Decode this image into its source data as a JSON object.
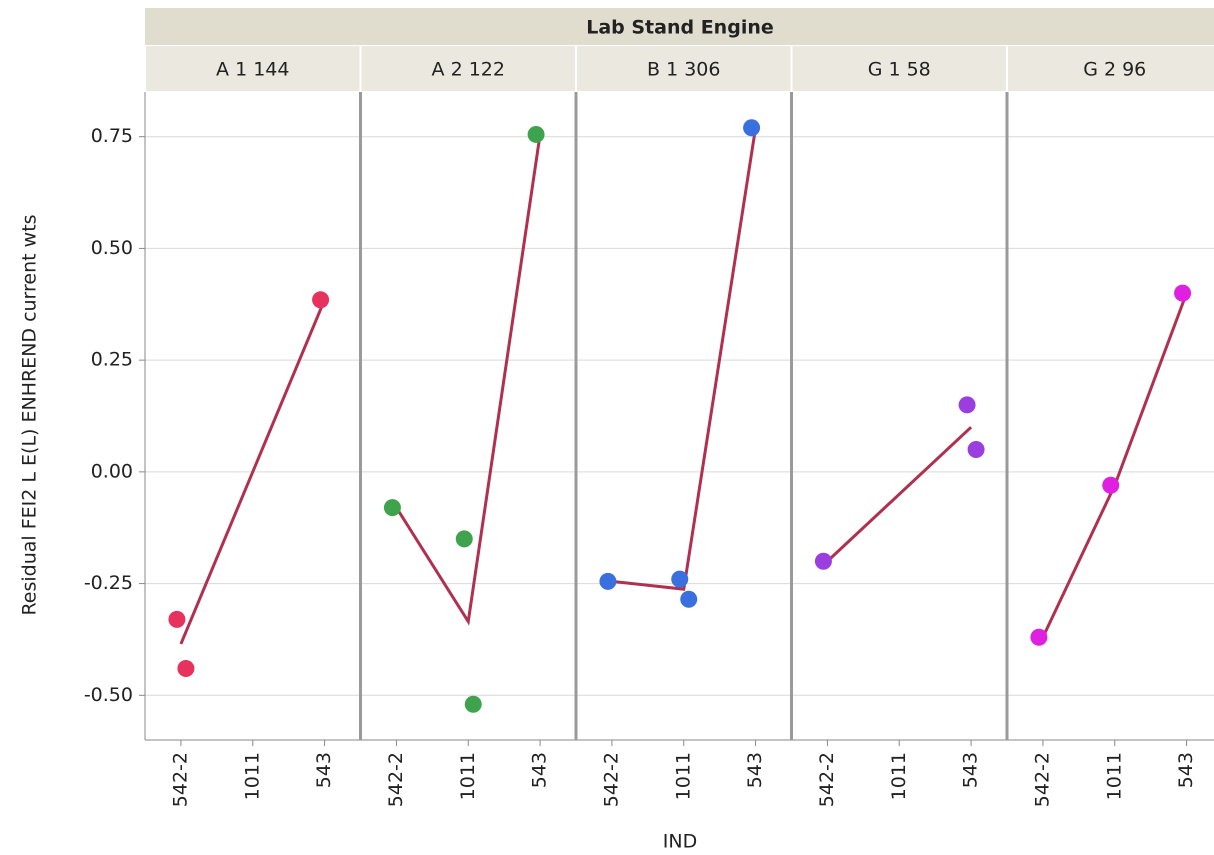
{
  "chart_data": {
    "type": "scatter",
    "title": "Lab Stand Engine",
    "y_label": "Residual FEI2 L E(L) ENHREND current wts",
    "x_label": "IND",
    "categories": [
      "542-2",
      "1011",
      "543"
    ],
    "ylim": [
      -0.6,
      0.85
    ],
    "yticks": [
      {
        "value": -0.5,
        "label": "-0.50"
      },
      {
        "value": -0.25,
        "label": "-0.25"
      },
      {
        "value": 0,
        "label": "0.00"
      },
      {
        "value": 0.25,
        "label": "0.25"
      },
      {
        "value": 0.5,
        "label": "0.50"
      },
      {
        "value": 0.75,
        "label": "0.75"
      }
    ],
    "grid": true,
    "line_color": "#b0304f",
    "panels": [
      {
        "name": "A 1 144",
        "color": "#e8325e",
        "x": [
          "542-2",
          "542-2",
          "543"
        ],
        "values": [
          -0.33,
          -0.44,
          0.385
        ],
        "mean_x": [
          "542-2",
          "543"
        ],
        "mean_values": [
          -0.385,
          0.385
        ]
      },
      {
        "name": "A 2 122",
        "color": "#3fa34d",
        "x": [
          "542-2",
          "1011",
          "1011",
          "543"
        ],
        "values": [
          -0.08,
          -0.15,
          -0.52,
          0.755
        ],
        "mean_x": [
          "542-2",
          "1011",
          "543"
        ],
        "mean_values": [
          -0.08,
          -0.335,
          0.755
        ]
      },
      {
        "name": "B 1 306",
        "color": "#3a6fe0",
        "x": [
          "542-2",
          "1011",
          "1011",
          "543"
        ],
        "values": [
          -0.245,
          -0.24,
          -0.285,
          0.77
        ],
        "mean_x": [
          "542-2",
          "1011",
          "543"
        ],
        "mean_values": [
          -0.245,
          -0.2625,
          0.77
        ]
      },
      {
        "name": "G 1 58",
        "color": "#9b3ee0",
        "x": [
          "542-2",
          "543",
          "543"
        ],
        "values": [
          -0.2,
          0.15,
          0.05
        ],
        "mean_x": [
          "542-2",
          "543"
        ],
        "mean_values": [
          -0.2,
          0.1
        ]
      },
      {
        "name": "G 2 96",
        "color": "#e020e0",
        "x": [
          "542-2",
          "1011",
          "543"
        ],
        "values": [
          -0.37,
          -0.03,
          0.4
        ],
        "mean_x": [
          "542-2",
          "1011",
          "543"
        ],
        "mean_values": [
          -0.37,
          -0.03,
          0.4
        ]
      }
    ]
  }
}
